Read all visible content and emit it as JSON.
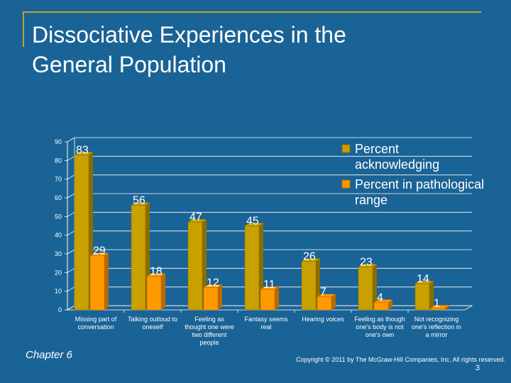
{
  "slide": {
    "title_line1": "Dissociative Experiences in the",
    "title_line2": "General Population",
    "chapter": "Chapter 6",
    "copyright": "Copyright © 2011 by The McGraw-Hill Companies, Inc. All rights reserved.",
    "page_number": "3"
  },
  "colors": {
    "background": "#1a6396",
    "series1": "#c8a000",
    "series1_side": "#8a6d00",
    "series2": "#ff9900",
    "series2_side": "#b86a00",
    "accent_line": "#c8a033"
  },
  "chart_data": {
    "type": "bar",
    "categories": [
      [
        "Missing part of",
        "conversation"
      ],
      [
        "Talking outloud to",
        "oneself"
      ],
      [
        "Feeling as",
        "thought one were",
        "two different",
        "people"
      ],
      [
        "Fantasy seems",
        "real"
      ],
      [
        "Hearing voices"
      ],
      [
        "Feeling as though",
        "one's body is not",
        "one's own"
      ],
      [
        "Not recognizing",
        "one's reflection in",
        "a mirror"
      ]
    ],
    "series": [
      {
        "name": "Percent acknowledging",
        "values": [
          83,
          56,
          47,
          45,
          26,
          23,
          14
        ]
      },
      {
        "name": "Percent in pathological range",
        "values": [
          29,
          18,
          12,
          11,
          7,
          4,
          1
        ]
      }
    ],
    "legend": {
      "entry1_lines": [
        "Percent",
        "acknowledging"
      ],
      "entry2_lines": [
        "Percent in pathological",
        "range"
      ]
    },
    "yticks": [
      "0",
      "10",
      "20",
      "30",
      "40",
      "50",
      "60",
      "70",
      "80",
      "90"
    ],
    "ylim": [
      0,
      90
    ],
    "grid": true,
    "legend_position": "top-right"
  }
}
